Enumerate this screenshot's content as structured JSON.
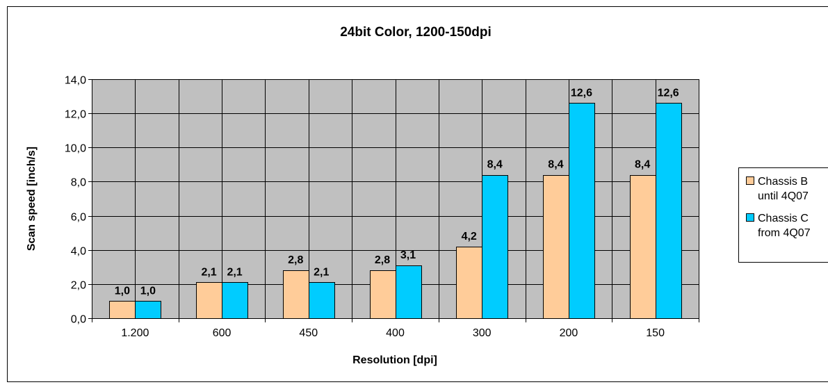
{
  "chart_data": {
    "type": "bar",
    "title": "24bit Color, 1200-150dpi",
    "xlabel": "Resolution [dpi]",
    "ylabel": "Scan speed [inch/s]",
    "categories": [
      "1.200",
      "600",
      "450",
      "400",
      "300",
      "200",
      "150"
    ],
    "series": [
      {
        "name": "Chassis B until 4Q07",
        "color": "#FFCC99",
        "values": [
          1.0,
          2.1,
          2.8,
          2.8,
          4.2,
          8.4,
          8.4
        ],
        "labels": [
          "1,0",
          "2,1",
          "2,8",
          "2,8",
          "4,2",
          "8,4",
          "8,4"
        ]
      },
      {
        "name": "Chassis C from 4Q07",
        "color": "#00CCFF",
        "values": [
          1.0,
          2.1,
          2.1,
          3.1,
          8.4,
          12.6,
          12.6
        ],
        "labels": [
          "1,0",
          "2,1",
          "2,1",
          "3,1",
          "8,4",
          "12,6",
          "12,6"
        ]
      }
    ],
    "ylim": [
      0,
      14
    ],
    "yticks": [
      0,
      2,
      4,
      6,
      8,
      10,
      12,
      14
    ],
    "ytick_labels": [
      "0,0",
      "2,0",
      "4,0",
      "6,0",
      "8,0",
      "10,0",
      "12,0",
      "14,0"
    ],
    "legend_lines": [
      [
        "Chassis B",
        "until 4Q07"
      ],
      [
        "Chassis C",
        "from 4Q07"
      ]
    ],
    "plot_background": "#C0C0C0",
    "grid": true,
    "legend_position": "right"
  }
}
